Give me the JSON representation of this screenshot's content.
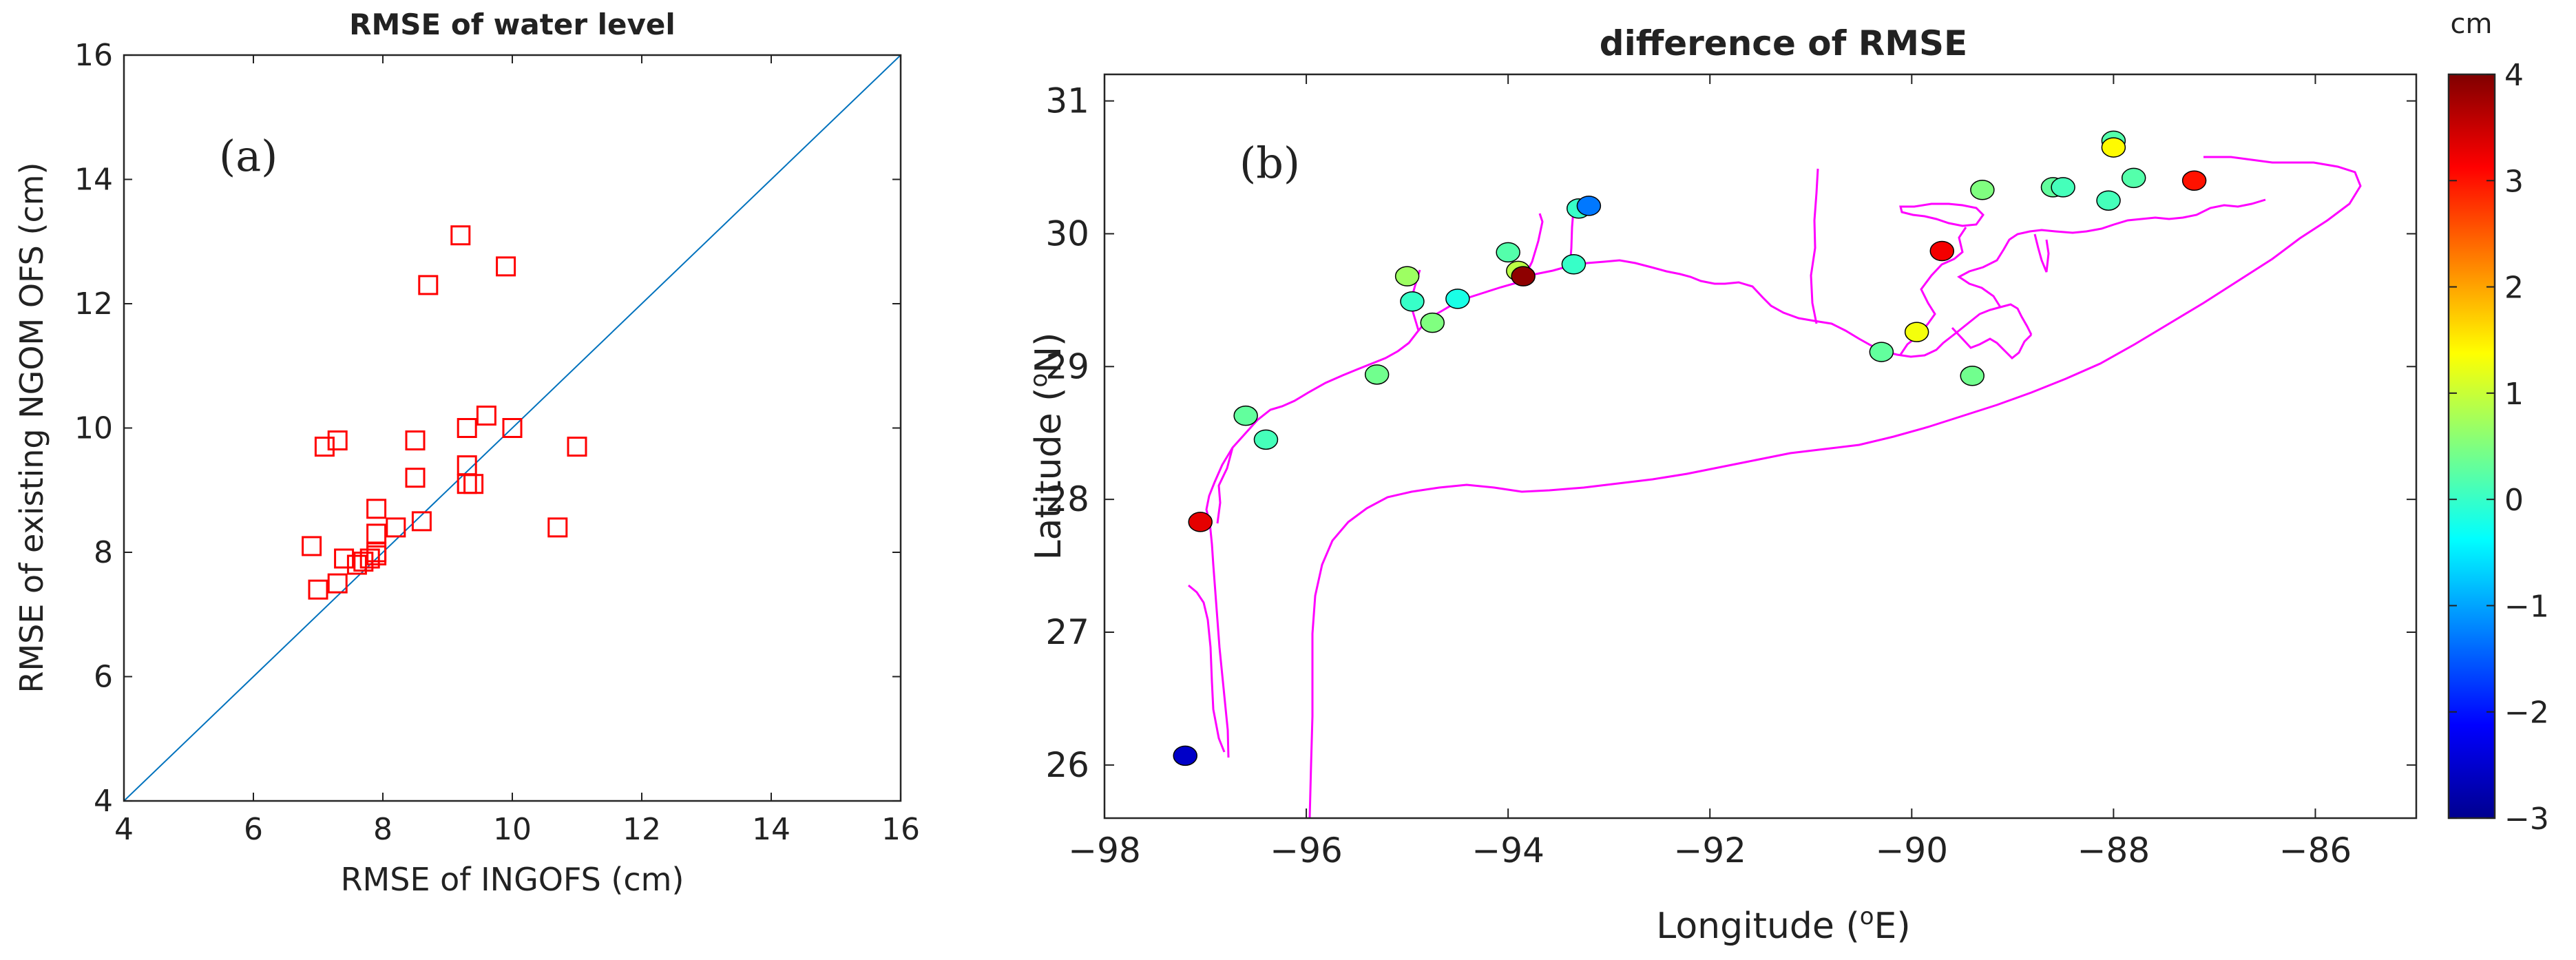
{
  "colors": {
    "scatter_marker": "#ff0000",
    "diagonal": "#0072bd",
    "coastline": "#ff00ff",
    "axis": "#222222"
  },
  "colorbar": {
    "unit": "cm",
    "min": -3,
    "max": 4,
    "ticks": [
      4,
      3,
      2,
      1,
      0,
      -1,
      -2,
      -3
    ],
    "tick_labels": [
      "4",
      "3",
      "2",
      "1",
      "0",
      "−1",
      "−2",
      "−3"
    ]
  },
  "chart_data": [
    {
      "type": "scatter",
      "panel_label": "(a)",
      "title": "RMSE of water level",
      "xlabel": "RMSE of INGOFS (cm)",
      "ylabel": "RMSE of existing NGOM OFS (cm)",
      "xlim": [
        4,
        16
      ],
      "ylim": [
        4,
        16
      ],
      "xticks": [
        4,
        6,
        8,
        10,
        12,
        14,
        16
      ],
      "yticks": [
        4,
        6,
        8,
        10,
        12,
        14,
        16
      ],
      "reference_line": "y = x",
      "points": [
        {
          "x": 9.2,
          "y": 13.1
        },
        {
          "x": 9.9,
          "y": 12.6
        },
        {
          "x": 8.7,
          "y": 12.3
        },
        {
          "x": 9.6,
          "y": 10.2
        },
        {
          "x": 10.0,
          "y": 10.0
        },
        {
          "x": 9.3,
          "y": 10.0
        },
        {
          "x": 7.3,
          "y": 9.8
        },
        {
          "x": 8.5,
          "y": 9.8
        },
        {
          "x": 7.1,
          "y": 9.7
        },
        {
          "x": 11.0,
          "y": 9.7
        },
        {
          "x": 9.3,
          "y": 9.4
        },
        {
          "x": 8.5,
          "y": 9.2
        },
        {
          "x": 9.3,
          "y": 9.1
        },
        {
          "x": 9.4,
          "y": 9.1
        },
        {
          "x": 7.9,
          "y": 8.7
        },
        {
          "x": 8.6,
          "y": 8.5
        },
        {
          "x": 10.7,
          "y": 8.4
        },
        {
          "x": 8.2,
          "y": 8.4
        },
        {
          "x": 7.9,
          "y": 8.3
        },
        {
          "x": 6.9,
          "y": 8.1
        },
        {
          "x": 7.9,
          "y": 8.0
        },
        {
          "x": 7.9,
          "y": 7.95
        },
        {
          "x": 7.8,
          "y": 7.9
        },
        {
          "x": 7.4,
          "y": 7.9
        },
        {
          "x": 7.7,
          "y": 7.85
        },
        {
          "x": 7.6,
          "y": 7.8
        },
        {
          "x": 7.3,
          "y": 7.5
        },
        {
          "x": 7.0,
          "y": 7.4
        }
      ]
    },
    {
      "type": "scatter",
      "panel_label": "(b)",
      "title": "difference of RMSE",
      "xlabel_prefix": "Longitude (",
      "xlabel_sup": "o",
      "xlabel_suffix": "E)",
      "ylabel_prefix": "Latitude (",
      "ylabel_sup": "o",
      "ylabel_suffix": "N)",
      "xlim": [
        -98,
        -85
      ],
      "ylim": [
        25.6,
        31.2
      ],
      "xticks": [
        -98,
        -96,
        -94,
        -92,
        -90,
        -88,
        -86
      ],
      "xtick_labels": [
        "−98",
        "−96",
        "−94",
        "−92",
        "−90",
        "−88",
        "−86"
      ],
      "yticks": [
        26,
        27,
        28,
        29,
        30,
        31
      ],
      "ytick_labels": [
        "26",
        "27",
        "28",
        "29",
        "30",
        "31"
      ],
      "color_variable": "difference of RMSE (cm)",
      "stations": [
        {
          "lon": -97.2,
          "lat": 26.07,
          "value": -2.5
        },
        {
          "lon": -97.05,
          "lat": 27.83,
          "value": 3.3
        },
        {
          "lon": -96.6,
          "lat": 28.63,
          "value": 0.3
        },
        {
          "lon": -96.4,
          "lat": 28.45,
          "value": 0.1
        },
        {
          "lon": -95.3,
          "lat": 28.94,
          "value": 0.4
        },
        {
          "lon": -95.0,
          "lat": 29.68,
          "value": 0.7
        },
        {
          "lon": -94.95,
          "lat": 29.49,
          "value": 0.0
        },
        {
          "lon": -94.75,
          "lat": 29.33,
          "value": 0.5
        },
        {
          "lon": -94.5,
          "lat": 29.51,
          "value": -0.2
        },
        {
          "lon": -94.0,
          "lat": 29.86,
          "value": 0.2
        },
        {
          "lon": -93.9,
          "lat": 29.72,
          "value": 0.9
        },
        {
          "lon": -93.85,
          "lat": 29.68,
          "value": 3.9
        },
        {
          "lon": -93.35,
          "lat": 29.77,
          "value": 0.0
        },
        {
          "lon": -93.3,
          "lat": 30.19,
          "value": 0.0
        },
        {
          "lon": -93.2,
          "lat": 30.21,
          "value": -1.3
        },
        {
          "lon": -90.3,
          "lat": 29.11,
          "value": 0.3
        },
        {
          "lon": -89.95,
          "lat": 29.26,
          "value": 1.3
        },
        {
          "lon": -89.7,
          "lat": 29.87,
          "value": 3.2
        },
        {
          "lon": -89.4,
          "lat": 28.93,
          "value": 0.4
        },
        {
          "lon": -89.3,
          "lat": 30.33,
          "value": 0.5
        },
        {
          "lon": -88.6,
          "lat": 30.35,
          "value": 0.3
        },
        {
          "lon": -88.5,
          "lat": 30.35,
          "value": 0.1
        },
        {
          "lon": -88.05,
          "lat": 30.25,
          "value": 0.1
        },
        {
          "lon": -88.0,
          "lat": 30.7,
          "value": 0.2
        },
        {
          "lon": -88.0,
          "lat": 30.65,
          "value": 1.4
        },
        {
          "lon": -87.8,
          "lat": 30.42,
          "value": 0.2
        },
        {
          "lon": -87.2,
          "lat": 30.4,
          "value": 3.0
        }
      ]
    }
  ]
}
